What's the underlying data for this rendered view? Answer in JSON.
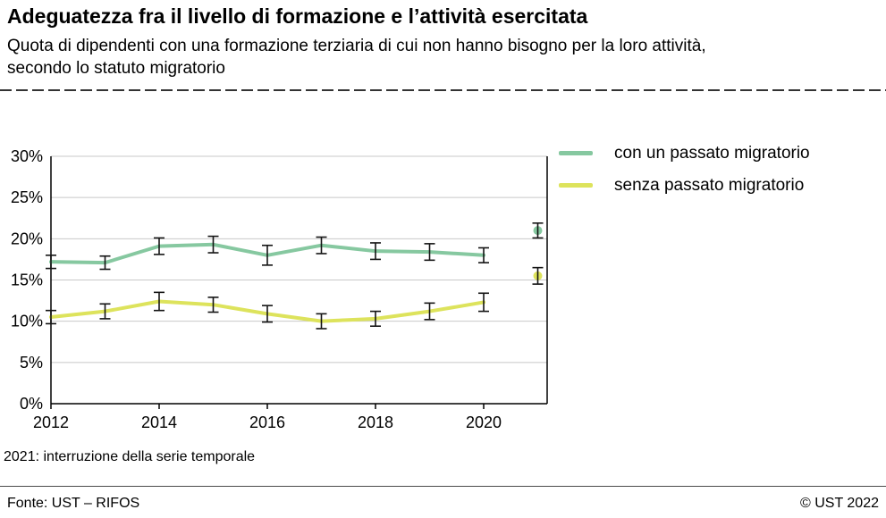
{
  "header": {
    "title": "Adeguatezza fra il livello di formazione e l’attività esercitata",
    "subtitle": "Quota di dipendenti con una formazione terziaria di cui non hanno bisogno per la loro attività, secondo lo statuto migratorio"
  },
  "chart_data": {
    "type": "line",
    "x": [
      2012,
      2013,
      2014,
      2015,
      2016,
      2017,
      2018,
      2019,
      2020
    ],
    "xticks": [
      2012,
      2014,
      2016,
      2018,
      2020
    ],
    "ylim": [
      0,
      30
    ],
    "ytick_step": 5,
    "ytick_suffix": "%",
    "grid": true,
    "legend_position": "top-right",
    "x_break_year": 2021,
    "error_bars": true,
    "series": [
      {
        "name": "con un passato migratorio",
        "color": "#86c8a0",
        "values": [
          17.2,
          17.1,
          19.1,
          19.3,
          18.0,
          19.2,
          18.5,
          18.4,
          18.0
        ],
        "errors": [
          0.8,
          0.8,
          1.0,
          1.0,
          1.2,
          1.0,
          1.0,
          1.0,
          0.9
        ],
        "break_value_2021": 21.0,
        "break_error_2021": 0.9
      },
      {
        "name": "senza passato migratorio",
        "color": "#dde35c",
        "values": [
          10.5,
          11.2,
          12.4,
          12.0,
          10.9,
          10.0,
          10.3,
          11.2,
          12.3
        ],
        "errors": [
          0.8,
          0.9,
          1.1,
          0.9,
          1.0,
          0.9,
          0.9,
          1.0,
          1.1
        ],
        "break_value_2021": 15.5,
        "break_error_2021": 1.0
      }
    ]
  },
  "footnote": "2021: interruzione della serie temporale",
  "footer": {
    "source": "Fonte: UST – RIFOS",
    "copyright": "© UST 2022"
  }
}
